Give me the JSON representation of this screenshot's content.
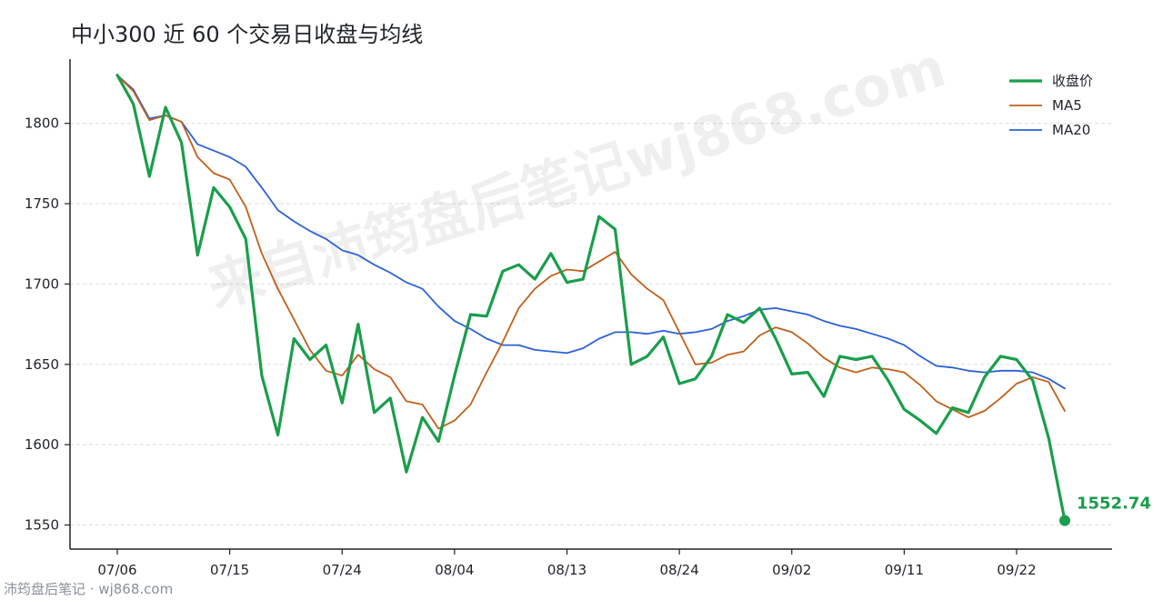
{
  "title": "中小300 近 60 个交易日收盘与均线",
  "watermark": "来自沛筠盘后笔记wj868.com",
  "footer": "沛筠盘后笔记 · wj868.com",
  "colors": {
    "close": "#1a9e4b",
    "ma5": "#c0601a",
    "ma20": "#2a62d8",
    "grid": "#dddddd",
    "axis": "#1f2328"
  },
  "chart_data": {
    "type": "line",
    "title": "中小300 近 60 个交易日收盘与均线",
    "xlabel": "",
    "ylabel": "",
    "ylim": [
      1535,
      1840
    ],
    "yticks": [
      1550,
      1600,
      1650,
      1700,
      1750,
      1800
    ],
    "xtick_labels": [
      "07/06",
      "07/15",
      "07/24",
      "08/04",
      "08/13",
      "08/24",
      "09/02",
      "09/11",
      "09/22"
    ],
    "xtick_index": [
      0,
      7,
      14,
      21,
      28,
      35,
      42,
      49,
      56
    ],
    "grid": "horizontal dashed",
    "legend_position": "top-right",
    "series": [
      {
        "name": "收盘价",
        "color": "#1a9e4b",
        "values": [
          1830,
          1812,
          1767,
          1810,
          1788,
          1718,
          1760,
          1748,
          1728,
          1643,
          1606,
          1666,
          1653,
          1662,
          1626,
          1675,
          1620,
          1629,
          1583,
          1617,
          1602,
          1643,
          1681,
          1680,
          1708,
          1712,
          1703,
          1719,
          1701,
          1703,
          1742,
          1734,
          1650,
          1655,
          1667,
          1638,
          1641,
          1655,
          1681,
          1676,
          1685,
          1666,
          1644,
          1645,
          1630,
          1655,
          1653,
          1655,
          1640,
          1622,
          1615,
          1607,
          1623,
          1620,
          1642,
          1655,
          1653,
          1640,
          1604,
          1552.74
        ]
      },
      {
        "name": "MA5",
        "color": "#c0601a",
        "values": [
          1830,
          1820,
          1802,
          1805,
          1801,
          1779,
          1769,
          1765,
          1748,
          1719,
          1697,
          1678,
          1659,
          1646,
          1643,
          1656,
          1647,
          1642,
          1627,
          1625,
          1610,
          1615,
          1625,
          1645,
          1664,
          1685,
          1697,
          1705,
          1709,
          1708,
          1714,
          1720,
          1706,
          1697,
          1690,
          1670,
          1650,
          1651,
          1656,
          1658,
          1668,
          1673,
          1670,
          1663,
          1654,
          1648,
          1645,
          1648,
          1647,
          1645,
          1637,
          1627,
          1622,
          1617,
          1621,
          1629,
          1638,
          1642,
          1639,
          1621
        ]
      },
      {
        "name": "MA20",
        "color": "#2a62d8",
        "values": [
          1830,
          1821,
          1803,
          1805,
          1801,
          1787,
          1783,
          1779,
          1773,
          1760,
          1746,
          1739,
          1733,
          1728,
          1721,
          1718,
          1712,
          1707,
          1701,
          1697,
          1686,
          1677,
          1672,
          1666,
          1662,
          1662,
          1659,
          1658,
          1657,
          1660,
          1666,
          1670,
          1670,
          1669,
          1671,
          1669,
          1670,
          1672,
          1677,
          1680,
          1684,
          1685,
          1683,
          1681,
          1677,
          1674,
          1672,
          1669,
          1666,
          1662,
          1655,
          1649,
          1648,
          1646,
          1645,
          1646,
          1646,
          1645,
          1641,
          1635
        ]
      }
    ],
    "end_label": "1552.74"
  }
}
